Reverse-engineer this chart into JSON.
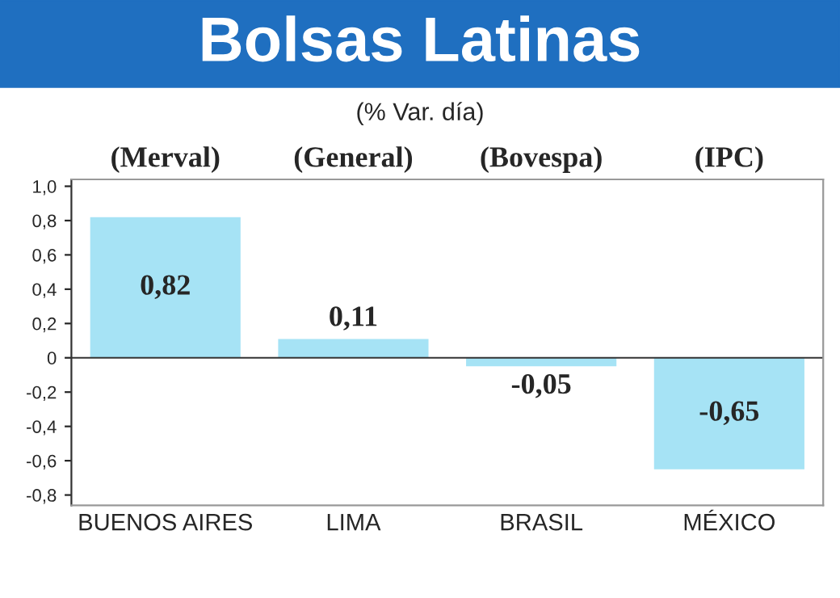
{
  "chart_data": {
    "type": "bar",
    "title": "Bolsas Latinas",
    "subtitle": "(% Var. día)",
    "categories": [
      "BUENOS AIRES",
      "LIMA",
      "BRASIL",
      "MÉXICO"
    ],
    "values": [
      0.82,
      0.11,
      -0.05,
      -0.65
    ],
    "value_labels": [
      "0,82",
      "0,11",
      "-0,05",
      "-0,65"
    ],
    "color": "#a6e3f5",
    "annotations": [
      "(Merval)",
      "(General)",
      "(Bovespa)",
      "(IPC)"
    ],
    "ylim": [
      -0.86,
      1.04
    ],
    "yticks": [
      {
        "value": 1.0,
        "label": "1,0"
      },
      {
        "value": 0.8,
        "label": "0,8"
      },
      {
        "value": 0.6,
        "label": "0,6"
      },
      {
        "value": 0.4,
        "label": "0,4"
      },
      {
        "value": 0.2,
        "label": "0,2"
      },
      0,
      {
        "value": -0.2,
        "label": "-0,2"
      },
      {
        "value": -0.4,
        "label": "-0,4"
      },
      {
        "value": -0.6,
        "label": "-0,6"
      },
      {
        "value": -0.8,
        "label": "-0,8"
      }
    ],
    "ref_lines": [
      {
        "axis": "y",
        "value": 0,
        "color": "#333333"
      }
    ]
  }
}
